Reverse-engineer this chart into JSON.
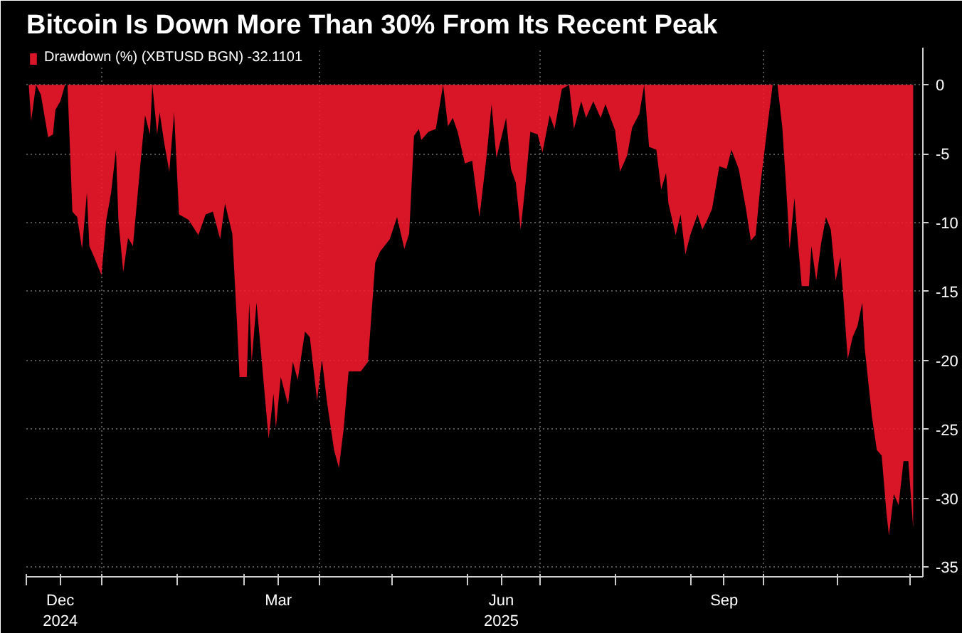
{
  "chart_data": {
    "type": "area",
    "title": "Bitcoin Is Down More Than 30% From Its Recent Peak",
    "x": [
      "2024-12-02",
      "2024-12-03",
      "2024-12-05",
      "2024-12-07",
      "2024-12-10",
      "2024-12-12",
      "2024-12-13",
      "2024-12-15",
      "2024-12-17",
      "2024-12-18",
      "2024-12-20",
      "2024-12-22",
      "2024-12-24",
      "2024-12-26",
      "2024-12-27",
      "2024-12-29",
      "2025-01-01",
      "2025-01-03",
      "2025-01-05",
      "2025-01-07",
      "2025-01-08",
      "2025-01-10",
      "2025-01-12",
      "2025-01-14",
      "2025-01-17",
      "2025-01-19",
      "2025-01-21",
      "2025-01-22",
      "2025-01-24",
      "2025-01-25",
      "2025-01-27",
      "2025-01-29",
      "2025-01-31",
      "2025-02-02",
      "2025-02-06",
      "2025-02-10",
      "2025-02-13",
      "2025-02-16",
      "2025-02-19",
      "2025-02-21",
      "2025-02-24",
      "2025-02-26",
      "2025-02-27",
      "2025-03-02",
      "2025-03-03",
      "2025-03-04",
      "2025-03-06",
      "2025-03-08",
      "2025-03-11",
      "2025-03-13",
      "2025-03-14",
      "2025-03-16",
      "2025-03-19",
      "2025-03-21",
      "2025-03-23",
      "2025-03-26",
      "2025-03-28",
      "2025-03-31",
      "2025-04-02",
      "2025-04-04",
      "2025-04-07",
      "2025-04-09",
      "2025-04-11",
      "2025-04-13",
      "2025-04-18",
      "2025-04-21",
      "2025-04-24",
      "2025-04-26",
      "2025-04-30",
      "2025-05-03",
      "2025-05-06",
      "2025-05-08",
      "2025-05-10",
      "2025-05-12",
      "2025-05-13",
      "2025-05-16",
      "2025-05-19",
      "2025-05-22",
      "2025-05-24",
      "2025-05-26",
      "2025-05-28",
      "2025-05-31",
      "2025-06-03",
      "2025-06-06",
      "2025-06-09",
      "2025-06-11",
      "2025-06-13",
      "2025-06-17",
      "2025-06-19",
      "2025-06-21",
      "2025-06-23",
      "2025-06-25",
      "2025-06-27",
      "2025-06-30",
      "2025-07-02",
      "2025-07-05",
      "2025-07-07",
      "2025-07-10",
      "2025-07-13",
      "2025-07-15",
      "2025-07-18",
      "2025-07-20",
      "2025-07-23",
      "2025-07-26",
      "2025-07-28",
      "2025-08-01",
      "2025-08-03",
      "2025-08-06",
      "2025-08-08",
      "2025-08-11",
      "2025-08-13",
      "2025-08-15",
      "2025-08-18",
      "2025-08-20",
      "2025-08-22",
      "2025-08-23",
      "2025-08-26",
      "2025-08-28",
      "2025-08-30",
      "2025-09-01",
      "2025-09-04",
      "2025-09-06",
      "2025-09-08",
      "2025-09-10",
      "2025-09-13",
      "2025-09-16",
      "2025-09-18",
      "2025-09-21",
      "2025-09-24",
      "2025-09-26",
      "2025-09-28",
      "2025-09-30",
      "2025-10-03",
      "2025-10-05",
      "2025-10-07",
      "2025-10-09",
      "2025-10-11",
      "2025-10-12",
      "2025-10-14",
      "2025-10-15",
      "2025-10-17",
      "2025-10-20",
      "2025-10-21",
      "2025-10-23",
      "2025-10-25",
      "2025-10-27",
      "2025-10-29",
      "2025-10-31",
      "2025-11-02",
      "2025-11-05",
      "2025-11-07",
      "2025-11-09",
      "2025-11-11",
      "2025-11-12",
      "2025-11-15",
      "2025-11-17",
      "2025-11-19",
      "2025-11-21",
      "2025-11-22",
      "2025-11-24",
      "2025-11-26",
      "2025-11-28",
      "2025-11-30",
      "2025-12-02"
    ],
    "series": [
      {
        "name": "Drawdown (%) (XBTUSD BGN) -32.1101",
        "color": "#ff1a2e",
        "values": [
          0,
          -2.6,
          0,
          -0.7,
          -3.8,
          -3.6,
          -1.8,
          -1.2,
          0,
          0,
          -9.2,
          -9.6,
          -11.9,
          -7.8,
          -11.7,
          -12.5,
          -13.8,
          -9.8,
          -7.8,
          -4.7,
          -9.8,
          -13.6,
          -11.1,
          -11.7,
          -5.9,
          -2.2,
          -3.6,
          0,
          -3.6,
          -2.0,
          -4.3,
          -6.3,
          -2.0,
          -9.4,
          -9.8,
          -10.9,
          -9.4,
          -9.2,
          -11.2,
          -8.6,
          -10.8,
          -17.5,
          -21.2,
          -21.2,
          -15.8,
          -20.1,
          -15.8,
          -19.7,
          -25.7,
          -22.4,
          -24.9,
          -21.2,
          -23.2,
          -20.1,
          -21.4,
          -17.9,
          -18.3,
          -22.9,
          -19.9,
          -22.9,
          -26.5,
          -27.8,
          -24.9,
          -20.8,
          -20.8,
          -20.1,
          -12.9,
          -12.1,
          -11.2,
          -9.6,
          -11.9,
          -10.8,
          -3.7,
          -3.2,
          -4.0,
          -3.4,
          -3.2,
          0,
          -3.0,
          -2.4,
          -3.4,
          -5.7,
          -5.5,
          -9.6,
          -5.1,
          -1.4,
          -5.3,
          -2.4,
          -6.1,
          -7.1,
          -10.5,
          -7.2,
          -3.4,
          -3.6,
          -4.9,
          -2.2,
          -3.2,
          -0.3,
          0,
          -3.2,
          -1.2,
          -2.4,
          -1.2,
          -2.4,
          -1.4,
          -3.3,
          -6.3,
          -5.1,
          -3.1,
          -2.1,
          0,
          -4.5,
          -4.7,
          -7.6,
          -6.4,
          -8.6,
          -10.9,
          -9.4,
          -12.3,
          -10.9,
          -9.4,
          -10.5,
          -9.8,
          -9.0,
          -5.9,
          -6.1,
          -4.7,
          -6.1,
          -9.0,
          -11.3,
          -10.9,
          -7.2,
          -2.8,
          0,
          0,
          -3.1,
          -8.6,
          -11.9,
          -8.2,
          -10.5,
          -14.6,
          -14.6,
          -11.7,
          -14.2,
          -11.5,
          -9.6,
          -10.5,
          -14.2,
          -12.5,
          -19.9,
          -18.3,
          -17.5,
          -15.8,
          -19.1,
          -24.1,
          -26.5,
          -26.9,
          -31.1,
          -32.7,
          -29.7,
          -30.5,
          -27.3,
          -27.3,
          -32.1101
        ]
      }
    ],
    "xlim": [
      "2024-12-01",
      "2025-12-06"
    ],
    "xticks": [
      {
        "value": "2024-12-01",
        "label": null
      },
      {
        "value": "2024-12-15",
        "label": "Dec\n2024"
      },
      {
        "value": "2025-01-01",
        "label": null
      },
      {
        "value": "2025-02-01",
        "label": null
      },
      {
        "value": "2025-03-01",
        "label": null
      },
      {
        "value": "2025-03-15",
        "label": "Mar"
      },
      {
        "value": "2025-04-01",
        "label": null
      },
      {
        "value": "2025-05-01",
        "label": null
      },
      {
        "value": "2025-06-01",
        "label": null
      },
      {
        "value": "2025-06-15",
        "label": "Jun\n2025"
      },
      {
        "value": "2025-07-01",
        "label": null
      },
      {
        "value": "2025-08-01",
        "label": null
      },
      {
        "value": "2025-09-01",
        "label": null
      },
      {
        "value": "2025-09-15",
        "label": "Sep"
      },
      {
        "value": "2025-10-01",
        "label": null
      },
      {
        "value": "2025-11-01",
        "label": null
      },
      {
        "value": "2025-12-01",
        "label": null
      }
    ],
    "ylim": [
      -35.7,
      2.7
    ],
    "yticks": [
      0,
      -5,
      -10,
      -15,
      -20,
      -25,
      -30,
      -35
    ],
    "grid": true,
    "legend": "top left"
  }
}
